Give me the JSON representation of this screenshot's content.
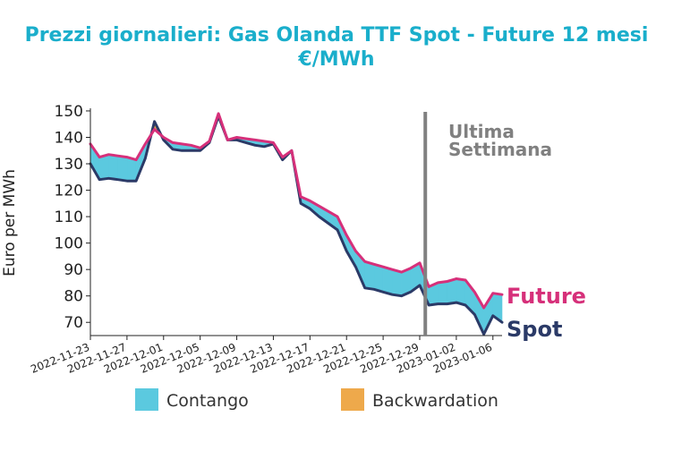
{
  "chart_data": {
    "type": "area",
    "title_line1": "Prezzi giornalieri: Gas Olanda TTF Spot - Future 12 mesi",
    "title_line2": "€/MWh",
    "ylabel": "Euro per MWh",
    "xlabel": "",
    "ylim": [
      65,
      151
    ],
    "yticks": [
      70,
      80,
      90,
      100,
      110,
      120,
      130,
      140,
      150
    ],
    "x_start": "2022-11-23",
    "x_end": "2023-01-07",
    "x_tick_labels": [
      "2022-11-23",
      "2022-11-27",
      "2022-12-01",
      "2022-12-05",
      "2022-12-09",
      "2022-12-13",
      "2022-12-17",
      "2022-12-21",
      "2022-12-25",
      "2022-12-29",
      "2023-01-02",
      "2023-01-06"
    ],
    "x": [
      "2022-11-23",
      "2022-11-24",
      "2022-11-25",
      "2022-11-26",
      "2022-11-27",
      "2022-11-28",
      "2022-11-29",
      "2022-11-30",
      "2022-12-01",
      "2022-12-02",
      "2022-12-03",
      "2022-12-04",
      "2022-12-05",
      "2022-12-06",
      "2022-12-07",
      "2022-12-08",
      "2022-12-09",
      "2022-12-10",
      "2022-12-11",
      "2022-12-12",
      "2022-12-13",
      "2022-12-14",
      "2022-12-15",
      "2022-12-16",
      "2022-12-17",
      "2022-12-18",
      "2022-12-19",
      "2022-12-20",
      "2022-12-21",
      "2022-12-22",
      "2022-12-23",
      "2022-12-24",
      "2022-12-25",
      "2022-12-26",
      "2022-12-27",
      "2022-12-28",
      "2022-12-29",
      "2022-12-30",
      "2022-12-31",
      "2023-01-01",
      "2023-01-02",
      "2023-01-03",
      "2023-01-04",
      "2023-01-05",
      "2023-01-06",
      "2023-01-07"
    ],
    "series": [
      {
        "name": "Future",
        "color": "#d6307a",
        "values": [
          137.5,
          132.5,
          133.5,
          133,
          132.5,
          131.5,
          137.5,
          143,
          140,
          138,
          137.5,
          137,
          136,
          138.5,
          149,
          139,
          140,
          139.5,
          139,
          138.5,
          138,
          132.5,
          135,
          117.5,
          116,
          114,
          112,
          110,
          103,
          97,
          93,
          92,
          91,
          90,
          89,
          90.5,
          92.5,
          83.5,
          85,
          85.5,
          86.5,
          86,
          81.5,
          75.5,
          81,
          80.5
        ]
      },
      {
        "name": "Spot",
        "color": "#2b3a67",
        "values": [
          130,
          124,
          124.5,
          124,
          123.5,
          123.5,
          132,
          146,
          139,
          135.5,
          135,
          135,
          135,
          138,
          148,
          139,
          139,
          138,
          137,
          136.5,
          137.5,
          131.5,
          135,
          115,
          113,
          110,
          107.5,
          105,
          97,
          91,
          83,
          82.5,
          81.5,
          80.5,
          80,
          81.5,
          84,
          76.5,
          77,
          77,
          77.5,
          76.5,
          73,
          65.5,
          72.5,
          70
        ]
      }
    ],
    "legend": [
      {
        "label": "Contango",
        "color": "#5bc9df"
      },
      {
        "label": "Backwardation",
        "color": "#eea94b"
      }
    ],
    "legend_placement": "bottom",
    "annotation_line1": "Ultima",
    "annotation_line2": "Settimana",
    "annotation_x": "2022-12-30",
    "annotation_color": "#808080",
    "series_labels": {
      "future": "Future",
      "spot": "Spot"
    },
    "grid": false
  }
}
